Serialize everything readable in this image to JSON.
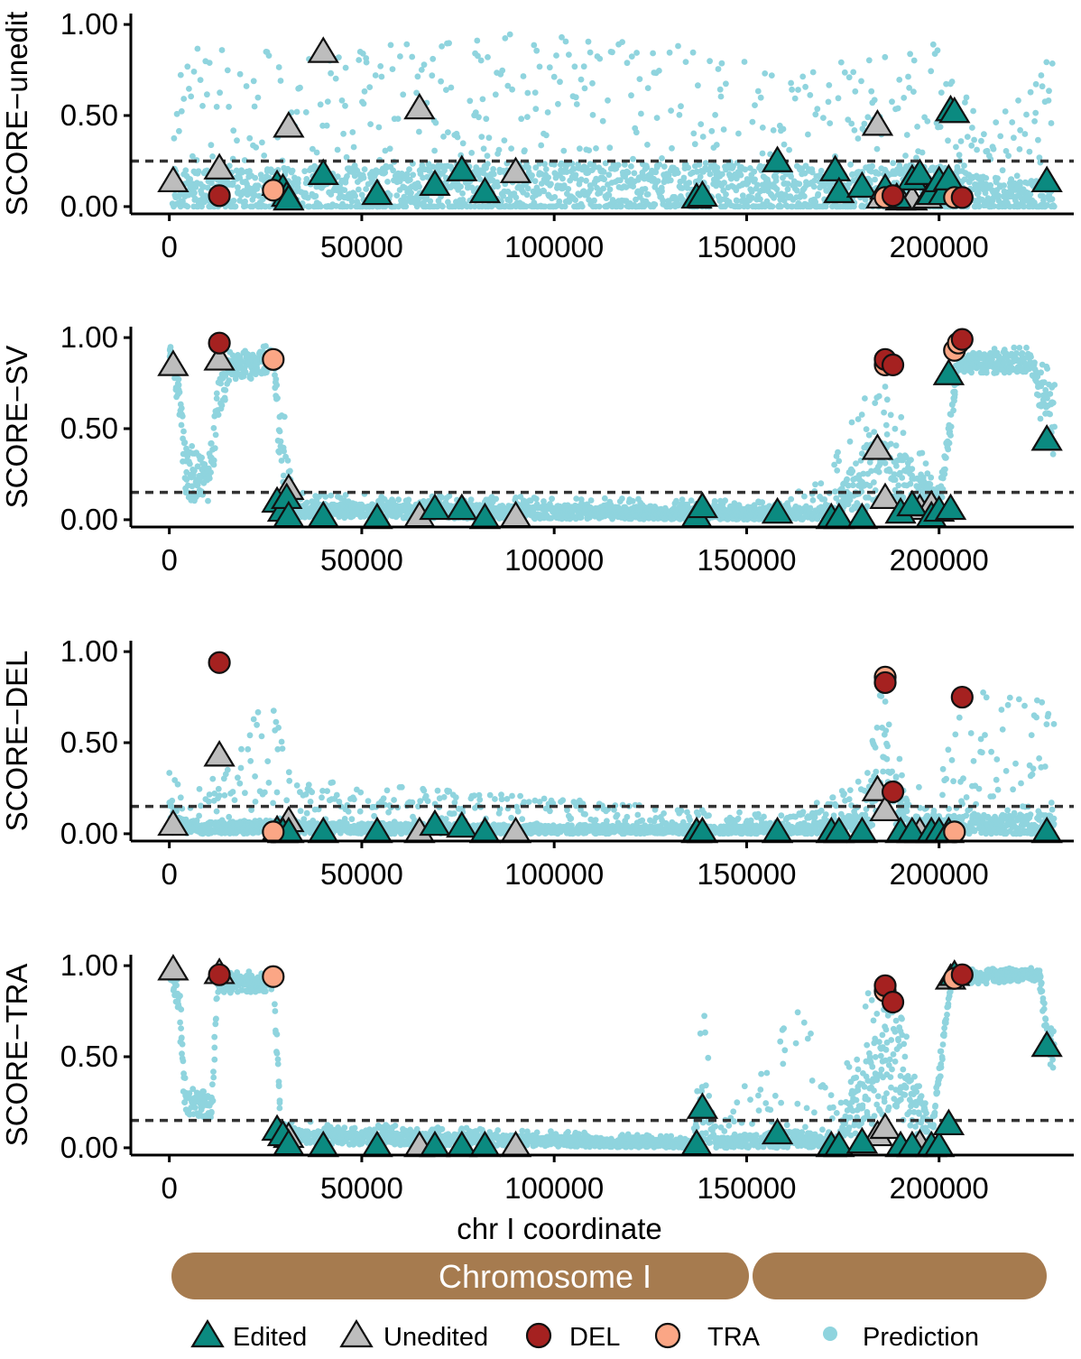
{
  "colors": {
    "edited": "#0b8a80",
    "unedited": "#bdbdbd",
    "del": "#a52120",
    "tra": "#fba685",
    "prediction": "#8fd4de",
    "chromosome": "#a67b4f"
  },
  "xaxis": {
    "label": "chr I coordinate",
    "range": [
      -10000,
      235000
    ],
    "ticks": [
      0,
      50000,
      100000,
      150000,
      200000
    ],
    "tick_labels": [
      "0",
      "50000",
      "100000",
      "150000",
      "200000"
    ]
  },
  "yaxis": {
    "range": [
      -0.04,
      1.06
    ],
    "ticks": [
      0.0,
      0.5,
      1.0
    ],
    "tick_labels": [
      "0.00",
      "0.50",
      "1.00"
    ]
  },
  "chromosome": {
    "label": "Chromosome I",
    "segments": [
      {
        "start": 0,
        "end": 155000
      },
      {
        "start": 155000,
        "end": 230000
      }
    ]
  },
  "legend": {
    "items": [
      {
        "key": "edited",
        "label": "Edited",
        "shape": "triangle"
      },
      {
        "key": "unedited",
        "label": "Unedited",
        "shape": "triangle"
      },
      {
        "key": "del",
        "label": "DEL",
        "shape": "circle"
      },
      {
        "key": "tra",
        "label": "TRA",
        "shape": "circle"
      },
      {
        "key": "prediction",
        "label": "Prediction",
        "shape": "dot"
      }
    ]
  },
  "chart_data": [
    {
      "type": "scatter",
      "ylabel": "SCORE−unedit",
      "threshold": 0.25,
      "prediction_profile": [
        {
          "x": 0,
          "base": 0.08,
          "spread": 0.12,
          "scatter_max": 0.88
        },
        {
          "x": 10000,
          "base": 0.08,
          "spread": 0.12,
          "scatter_max": 0.88
        },
        {
          "x": 30000,
          "base": 0.08,
          "spread": 0.14,
          "scatter_max": 0.85
        },
        {
          "x": 90000,
          "base": 0.1,
          "spread": 0.14,
          "scatter_max": 0.95
        },
        {
          "x": 140000,
          "base": 0.1,
          "spread": 0.14,
          "scatter_max": 0.88
        },
        {
          "x": 160000,
          "base": 0.08,
          "spread": 0.12,
          "scatter_max": 0.7
        },
        {
          "x": 200000,
          "base": 0.1,
          "spread": 0.14,
          "scatter_max": 0.97
        },
        {
          "x": 212000,
          "base": 0.06,
          "spread": 0.1,
          "scatter_max": 0.4
        },
        {
          "x": 228000,
          "base": 0.05,
          "spread": 0.1,
          "scatter_max": 0.8
        }
      ],
      "edited": [
        [
          28000,
          0.12
        ],
        [
          29500,
          0.1
        ],
        [
          30500,
          0.06
        ],
        [
          31000,
          0.04
        ],
        [
          40000,
          0.18
        ],
        [
          54000,
          0.07
        ],
        [
          69000,
          0.12
        ],
        [
          76000,
          0.2
        ],
        [
          82000,
          0.08
        ],
        [
          137000,
          0.05
        ],
        [
          138500,
          0.06
        ],
        [
          158000,
          0.25
        ],
        [
          173000,
          0.2
        ],
        [
          174000,
          0.08
        ],
        [
          180000,
          0.11
        ],
        [
          186000,
          0.1
        ],
        [
          189000,
          0.05
        ],
        [
          193000,
          0.15
        ],
        [
          195000,
          0.18
        ],
        [
          198000,
          0.07
        ],
        [
          200000,
          0.14
        ],
        [
          201000,
          0.07
        ],
        [
          202500,
          0.15
        ],
        [
          203000,
          0.53
        ],
        [
          204000,
          0.52
        ],
        [
          228000,
          0.14
        ]
      ],
      "unedited": [
        [
          1000,
          0.14
        ],
        [
          13000,
          0.21
        ],
        [
          31000,
          0.44
        ],
        [
          40000,
          0.85
        ],
        [
          65000,
          0.54
        ],
        [
          90000,
          0.19
        ],
        [
          184000,
          0.45
        ],
        [
          185000,
          0.05
        ],
        [
          190000,
          0.04
        ],
        [
          193000,
          0.04
        ],
        [
          197000,
          0.05
        ]
      ],
      "del": [
        [
          13000,
          0.06
        ],
        [
          188000,
          0.06
        ],
        [
          206000,
          0.05
        ]
      ],
      "tra": [
        [
          27000,
          0.09
        ],
        [
          186000,
          0.05
        ],
        [
          204000,
          0.05
        ]
      ]
    },
    {
      "type": "scatter",
      "ylabel": "SCORE−SV",
      "threshold": 0.15,
      "prediction_profile": [
        {
          "x": 0,
          "base": 0.92,
          "spread": 0.05,
          "scatter_max": 0.95
        },
        {
          "x": 2500,
          "base": 0.7,
          "spread": 0.1,
          "scatter_max": 0.8
        },
        {
          "x": 4000,
          "base": 0.25,
          "spread": 0.15,
          "scatter_max": 0.45
        },
        {
          "x": 10000,
          "base": 0.2,
          "spread": 0.1,
          "scatter_max": 0.3
        },
        {
          "x": 12000,
          "base": 0.55,
          "spread": 0.2,
          "scatter_max": 0.8
        },
        {
          "x": 15000,
          "base": 0.8,
          "spread": 0.08,
          "scatter_max": 0.92
        },
        {
          "x": 27000,
          "base": 0.88,
          "spread": 0.06,
          "scatter_max": 0.98
        },
        {
          "x": 29000,
          "base": 0.3,
          "spread": 0.2,
          "scatter_max": 0.7
        },
        {
          "x": 33000,
          "base": 0.05,
          "spread": 0.04,
          "scatter_max": 0.15
        },
        {
          "x": 160000,
          "base": 0.03,
          "spread": 0.03,
          "scatter_max": 0.1
        },
        {
          "x": 172000,
          "base": 0.04,
          "spread": 0.04,
          "scatter_max": 0.3
        },
        {
          "x": 183000,
          "base": 0.3,
          "spread": 0.25,
          "scatter_max": 0.85
        },
        {
          "x": 200000,
          "base": 0.08,
          "spread": 0.08,
          "scatter_max": 0.2
        },
        {
          "x": 205000,
          "base": 0.86,
          "spread": 0.05,
          "scatter_max": 0.95
        },
        {
          "x": 224000,
          "base": 0.86,
          "spread": 0.06,
          "scatter_max": 0.95
        },
        {
          "x": 228000,
          "base": 0.55,
          "spread": 0.2,
          "scatter_max": 0.85
        }
      ],
      "edited": [
        [
          28000,
          0.1
        ],
        [
          29500,
          0.05
        ],
        [
          30500,
          0.12
        ],
        [
          31000,
          0.02
        ],
        [
          40000,
          0.02
        ],
        [
          54000,
          0.01
        ],
        [
          69000,
          0.06
        ],
        [
          76000,
          0.06
        ],
        [
          82000,
          0.01
        ],
        [
          137000,
          0.02
        ],
        [
          138500,
          0.07
        ],
        [
          158000,
          0.04
        ],
        [
          172000,
          0.01
        ],
        [
          174000,
          0.01
        ],
        [
          180000,
          0.01
        ],
        [
          190000,
          0.04
        ],
        [
          193000,
          0.08
        ],
        [
          198000,
          0.02
        ],
        [
          200000,
          0.05
        ],
        [
          202500,
          0.8
        ],
        [
          203000,
          0.06
        ],
        [
          228000,
          0.44
        ]
      ],
      "unedited": [
        [
          1000,
          0.85
        ],
        [
          13000,
          0.88
        ],
        [
          31000,
          0.17
        ],
        [
          65000,
          0.02
        ],
        [
          90000,
          0.02
        ],
        [
          184000,
          0.39
        ],
        [
          186000,
          0.12
        ],
        [
          195000,
          0.06
        ],
        [
          198000,
          0.08
        ]
      ],
      "del": [
        [
          13000,
          0.97
        ],
        [
          186000,
          0.88
        ],
        [
          188000,
          0.85
        ],
        [
          206000,
          0.99
        ]
      ],
      "tra": [
        [
          27000,
          0.88
        ],
        [
          186000,
          0.85
        ],
        [
          204000,
          0.93
        ],
        [
          205000,
          0.97
        ]
      ]
    },
    {
      "type": "scatter",
      "ylabel": "SCORE−DEL",
      "threshold": 0.15,
      "prediction_profile": [
        {
          "x": 0,
          "base": 0.1,
          "spread": 0.1,
          "scatter_max": 0.42
        },
        {
          "x": 4000,
          "base": 0.03,
          "spread": 0.03,
          "scatter_max": 0.15
        },
        {
          "x": 27000,
          "base": 0.04,
          "spread": 0.04,
          "scatter_max": 0.8
        },
        {
          "x": 33000,
          "base": 0.03,
          "spread": 0.03,
          "scatter_max": 0.3
        },
        {
          "x": 160000,
          "base": 0.02,
          "spread": 0.02,
          "scatter_max": 0.1
        },
        {
          "x": 180000,
          "base": 0.05,
          "spread": 0.06,
          "scatter_max": 0.3
        },
        {
          "x": 185000,
          "base": 0.35,
          "spread": 0.25,
          "scatter_max": 0.85
        },
        {
          "x": 192000,
          "base": 0.05,
          "spread": 0.05,
          "scatter_max": 0.2
        },
        {
          "x": 206000,
          "base": 0.05,
          "spread": 0.05,
          "scatter_max": 0.8
        },
        {
          "x": 228000,
          "base": 0.05,
          "spread": 0.06,
          "scatter_max": 0.75
        }
      ],
      "edited": [
        [
          28000,
          0.02
        ],
        [
          29500,
          0.01
        ],
        [
          31000,
          0.01
        ],
        [
          40000,
          0.01
        ],
        [
          54000,
          0.01
        ],
        [
          69000,
          0.05
        ],
        [
          76000,
          0.04
        ],
        [
          82000,
          0.01
        ],
        [
          137000,
          0.01
        ],
        [
          138500,
          0.01
        ],
        [
          158000,
          0.01
        ],
        [
          172000,
          0.01
        ],
        [
          174000,
          0.01
        ],
        [
          180000,
          0.01
        ],
        [
          190000,
          0.01
        ],
        [
          193000,
          0.01
        ],
        [
          198000,
          0.01
        ],
        [
          200000,
          0.01
        ],
        [
          202500,
          0.01
        ],
        [
          228000,
          0.01
        ]
      ],
      "unedited": [
        [
          1000,
          0.05
        ],
        [
          13000,
          0.43
        ],
        [
          31000,
          0.07
        ],
        [
          65000,
          0.01
        ],
        [
          90000,
          0.01
        ],
        [
          184000,
          0.24
        ],
        [
          186000,
          0.13
        ],
        [
          195000,
          0.01
        ],
        [
          198000,
          0.01
        ]
      ],
      "del": [
        [
          13000,
          0.94
        ],
        [
          186000,
          0.83
        ],
        [
          188000,
          0.23
        ],
        [
          206000,
          0.75
        ]
      ],
      "tra": [
        [
          27000,
          0.01
        ],
        [
          186000,
          0.86
        ],
        [
          204000,
          0.01
        ]
      ]
    },
    {
      "type": "scatter",
      "ylabel": "SCORE−TRA",
      "threshold": 0.15,
      "prediction_profile": [
        {
          "x": 0,
          "base": 0.97,
          "spread": 0.03,
          "scatter_max": 0.99
        },
        {
          "x": 2500,
          "base": 0.8,
          "spread": 0.1,
          "scatter_max": 0.9
        },
        {
          "x": 4000,
          "base": 0.25,
          "spread": 0.08,
          "scatter_max": 0.35
        },
        {
          "x": 11000,
          "base": 0.22,
          "spread": 0.06,
          "scatter_max": 0.3
        },
        {
          "x": 12500,
          "base": 0.9,
          "spread": 0.05,
          "scatter_max": 0.97
        },
        {
          "x": 27000,
          "base": 0.9,
          "spread": 0.05,
          "scatter_max": 0.97
        },
        {
          "x": 29000,
          "base": 0.06,
          "spread": 0.04,
          "scatter_max": 0.15
        },
        {
          "x": 136000,
          "base": 0.02,
          "spread": 0.02,
          "scatter_max": 0.06
        },
        {
          "x": 138000,
          "base": 0.2,
          "spread": 0.15,
          "scatter_max": 0.92
        },
        {
          "x": 142000,
          "base": 0.03,
          "spread": 0.03,
          "scatter_max": 0.1
        },
        {
          "x": 165000,
          "base": 0.05,
          "spread": 0.05,
          "scatter_max": 0.86
        },
        {
          "x": 173000,
          "base": 0.02,
          "spread": 0.02,
          "scatter_max": 0.2
        },
        {
          "x": 180000,
          "base": 0.3,
          "spread": 0.2,
          "scatter_max": 0.85
        },
        {
          "x": 188000,
          "base": 0.5,
          "spread": 0.3,
          "scatter_max": 0.9
        },
        {
          "x": 198000,
          "base": 0.05,
          "spread": 0.05,
          "scatter_max": 0.2
        },
        {
          "x": 203000,
          "base": 0.93,
          "spread": 0.04,
          "scatter_max": 0.98
        },
        {
          "x": 226000,
          "base": 0.95,
          "spread": 0.03,
          "scatter_max": 0.99
        },
        {
          "x": 228000,
          "base": 0.55,
          "spread": 0.12,
          "scatter_max": 0.7
        }
      ],
      "edited": [
        [
          28000,
          0.1
        ],
        [
          29500,
          0.07
        ],
        [
          31000,
          0.02
        ],
        [
          40000,
          0.01
        ],
        [
          54000,
          0.01
        ],
        [
          69000,
          0.01
        ],
        [
          76000,
          0.01
        ],
        [
          82000,
          0.01
        ],
        [
          137000,
          0.02
        ],
        [
          138500,
          0.22
        ],
        [
          158000,
          0.08
        ],
        [
          172000,
          0.01
        ],
        [
          174000,
          0.01
        ],
        [
          180000,
          0.03
        ],
        [
          190000,
          0.01
        ],
        [
          193000,
          0.01
        ],
        [
          198000,
          0.01
        ],
        [
          200000,
          0.01
        ],
        [
          202500,
          0.13
        ],
        [
          204000,
          0.95
        ],
        [
          228000,
          0.56
        ]
      ],
      "unedited": [
        [
          1000,
          0.98
        ],
        [
          13000,
          0.96
        ],
        [
          31000,
          0.06
        ],
        [
          65000,
          0.01
        ],
        [
          90000,
          0.01
        ],
        [
          184000,
          0.07
        ],
        [
          186000,
          0.11
        ],
        [
          195000,
          0.02
        ],
        [
          203000,
          0.93
        ]
      ],
      "del": [
        [
          13000,
          0.95
        ],
        [
          186000,
          0.89
        ],
        [
          188000,
          0.8
        ],
        [
          206000,
          0.95
        ]
      ],
      "tra": [
        [
          27000,
          0.94
        ],
        [
          186000,
          0.86
        ],
        [
          204000,
          0.93
        ]
      ]
    }
  ]
}
